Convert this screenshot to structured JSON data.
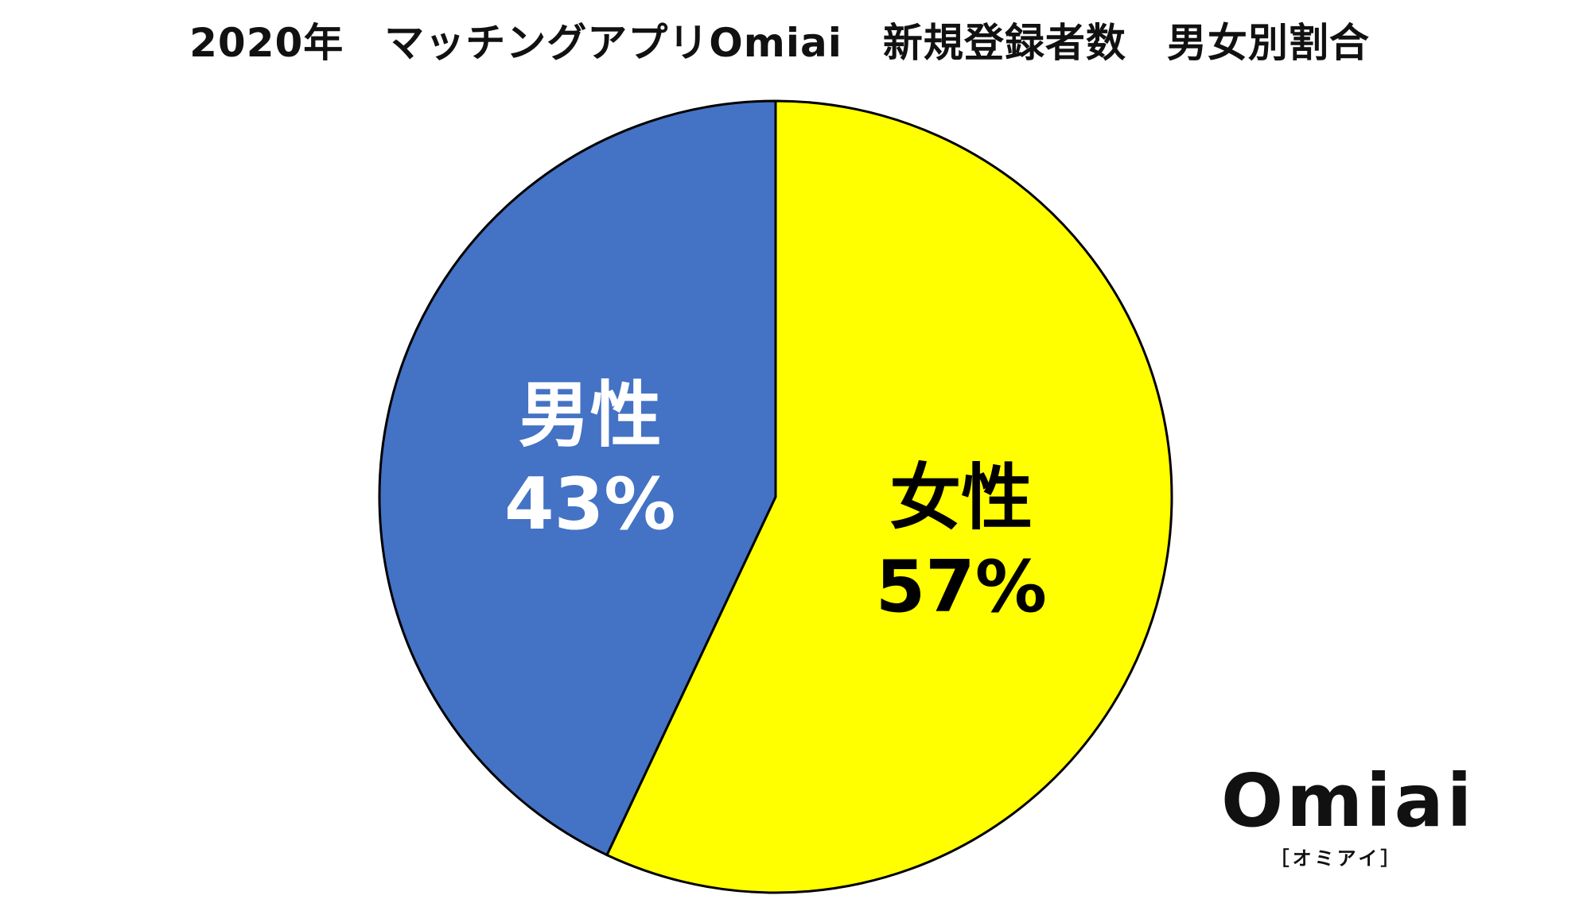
{
  "chart_data": {
    "type": "pie",
    "title": "2020年　マッチングアプリOmiai　新規登録者数　男女別割合",
    "slices": [
      {
        "label": "女性",
        "value": 57,
        "value_label": "57%",
        "color": "#FFFF00",
        "text_color": "#000000"
      },
      {
        "label": "男性",
        "value": 43,
        "value_label": "43%",
        "color": "#4472C4",
        "text_color": "#FFFFFF"
      }
    ]
  },
  "logo": {
    "wordmark": "Omiai",
    "reading": "［オミアイ］"
  }
}
